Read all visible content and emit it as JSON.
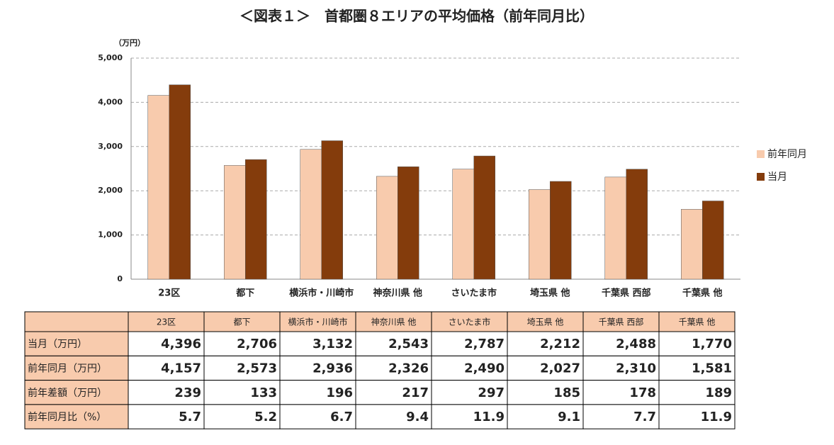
{
  "chart_data": {
    "type": "bar",
    "title": "＜図表１＞　首都圏８エリアの平均価格（前年同月比）",
    "y_unit": "（万円）",
    "categories": [
      "23区",
      "都下",
      "横浜市・川崎市",
      "神奈川県 他",
      "さいたま市",
      "埼玉県 他",
      "千葉県 西部",
      "千葉県 他"
    ],
    "series": [
      {
        "name": "前年同月",
        "color": "#f8cbad",
        "values": [
          4157,
          2573,
          2936,
          2326,
          2490,
          2027,
          2310,
          1581
        ]
      },
      {
        "name": "当月",
        "color": "#843c0c",
        "values": [
          4396,
          2706,
          3132,
          2543,
          2787,
          2212,
          2488,
          1770
        ]
      }
    ],
    "ylim": [
      0,
      5000
    ],
    "yticks": [
      0,
      {
        "value": 1000,
        "label": "1,000"
      },
      {
        "value": 2000,
        "label": "2,000"
      },
      {
        "value": 3000,
        "label": "3,000"
      },
      {
        "value": 4000,
        "label": "4,000"
      },
      {
        "value": 5000,
        "label": "5,000"
      }
    ],
    "grid": true,
    "legend": "right"
  },
  "table": {
    "rows": [
      {
        "label": "当月（万円）",
        "cells": [
          "4,396",
          "2,706",
          "3,132",
          "2,543",
          "2,787",
          "2,212",
          "2,488",
          "1,770"
        ]
      },
      {
        "label": "前年同月（万円）",
        "cells": [
          "4,157",
          "2,573",
          "2,936",
          "2,326",
          "2,490",
          "2,027",
          "2,310",
          "1,581"
        ]
      },
      {
        "label": "前年差額（万円）",
        "cells": [
          "239",
          "133",
          "196",
          "217",
          "297",
          "185",
          "178",
          "189"
        ]
      },
      {
        "label": "前年同月比（%）",
        "cells": [
          "5.7",
          "5.2",
          "6.7",
          "9.4",
          "11.9",
          "9.1",
          "7.7",
          "11.9"
        ]
      }
    ]
  }
}
